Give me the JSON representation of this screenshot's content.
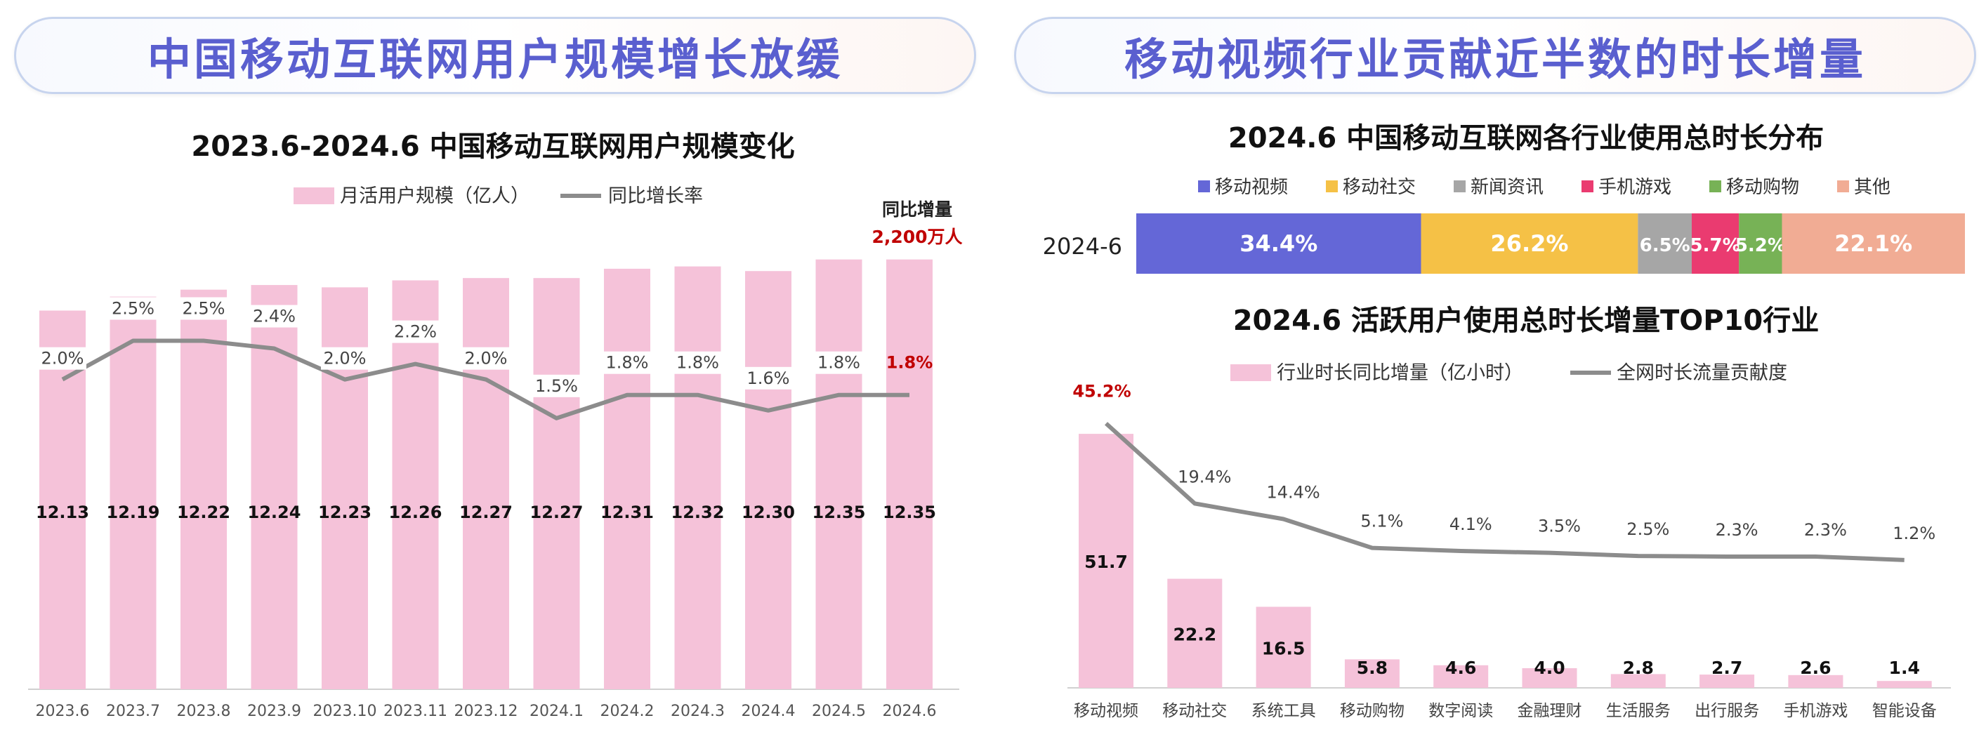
{
  "headers": {
    "left": "中国移动互联网用户规模增长放缓",
    "right": "移动视频行业贡献近半数的时长增量"
  },
  "chart_data": [
    {
      "type": "bar",
      "title": "2023.6-2024.6  中国移动互联网用户规模变化",
      "categories": [
        "2023.6",
        "2023.7",
        "2023.8",
        "2023.9",
        "2023.10",
        "2023.11",
        "2023.12",
        "2024.1",
        "2024.2",
        "2024.3",
        "2024.4",
        "2024.5",
        "2024.6"
      ],
      "series": [
        {
          "name": "月活用户规模（亿人）",
          "kind": "bar",
          "color": "#f5c2d9",
          "values": [
            12.13,
            12.19,
            12.22,
            12.24,
            12.23,
            12.26,
            12.27,
            12.27,
            12.31,
            12.32,
            12.3,
            12.35,
            12.35
          ],
          "labels": [
            "12.13",
            "12.19",
            "12.22",
            "12.24",
            "12.23",
            "12.26",
            "12.27",
            "12.27",
            "12.31",
            "12.32",
            "12.30",
            "12.35",
            "12.35"
          ]
        },
        {
          "name": "同比增长率",
          "kind": "line",
          "color": "#8c8c8c",
          "values": [
            2.0,
            2.5,
            2.5,
            2.4,
            2.0,
            2.2,
            2.0,
            1.5,
            1.8,
            1.8,
            1.6,
            1.8,
            1.8
          ],
          "labels": [
            "2.0%",
            "2.5%",
            "2.5%",
            "2.4%",
            "2.0%",
            "2.2%",
            "2.0%",
            "1.5%",
            "1.8%",
            "1.8%",
            "1.6%",
            "1.8%",
            "1.8%"
          ]
        }
      ],
      "bar_axis": [
        10.5,
        12.5
      ],
      "line_axis": [
        -2.0,
        4.0
      ],
      "annotation": {
        "title": "同比增量",
        "value": "2,200万人",
        "color": "#c00000"
      },
      "highlight_last_label_color": "#c00000",
      "legend_position": "top"
    },
    {
      "type": "bar",
      "stacked": true,
      "orientation": "horizontal",
      "title": "2024.6 中国移动互联网各行业使用总时长分布",
      "categories": [
        "2024-6"
      ],
      "series": [
        {
          "name": "移动视频",
          "values": [
            34.4
          ],
          "label": "34.4%",
          "color": "#6467d7"
        },
        {
          "name": "移动社交",
          "values": [
            26.2
          ],
          "label": "26.2%",
          "color": "#f5c146"
        },
        {
          "name": "新闻资讯",
          "values": [
            6.5
          ],
          "label": "6.5%",
          "color": "#a6a6a6"
        },
        {
          "name": "手机游戏",
          "values": [
            5.7
          ],
          "label": "5.7%",
          "color": "#ea3b70"
        },
        {
          "name": "移动购物",
          "values": [
            5.2
          ],
          "label": "5.2%",
          "color": "#77b256"
        },
        {
          "name": "其他",
          "values": [
            22.1
          ],
          "label": "22.1%",
          "color": "#f1ac94"
        }
      ],
      "legend_position": "top"
    },
    {
      "type": "bar",
      "title": "2024.6 活跃用户使用总时长增量TOP10行业",
      "categories": [
        "移动视频",
        "移动社交",
        "系统工具",
        "移动购物",
        "数字阅读",
        "金融理财",
        "生活服务",
        "出行服务",
        "手机游戏",
        "智能设备"
      ],
      "series": [
        {
          "name": "行业时长同比增量（亿小时）",
          "kind": "bar",
          "color": "#f5c2d9",
          "values": [
            51.7,
            22.2,
            16.5,
            5.8,
            4.6,
            4.0,
            2.8,
            2.7,
            2.6,
            1.4
          ],
          "labels": [
            "51.7",
            "22.2",
            "16.5",
            "5.8",
            "4.6",
            "4.0",
            "2.8",
            "2.7",
            "2.6",
            "1.4"
          ]
        },
        {
          "name": "全网时长流量贡献度",
          "kind": "line",
          "color": "#8c8c8c",
          "values": [
            45.2,
            19.4,
            14.4,
            5.1,
            4.1,
            3.5,
            2.5,
            2.3,
            2.3,
            1.2
          ],
          "labels": [
            "45.2%",
            "19.4%",
            "14.4%",
            "5.1%",
            "4.1%",
            "3.5%",
            "2.5%",
            "2.3%",
            "2.3%",
            "1.2%"
          ]
        }
      ],
      "bar_axis": [
        0,
        60
      ],
      "line_axis": [
        -40,
        55
      ],
      "highlight_first_label_color": "#c00000",
      "legend_position": "top"
    }
  ]
}
